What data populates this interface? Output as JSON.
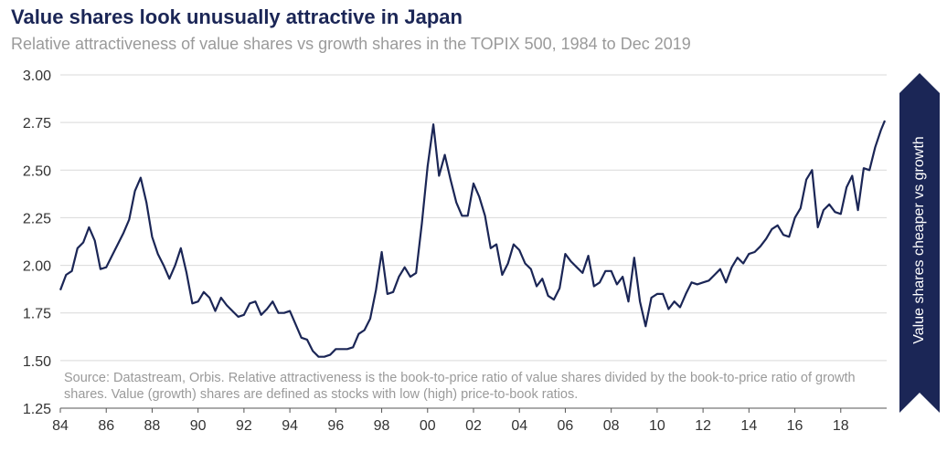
{
  "title": "Value shares look unusually attractive in Japan",
  "subtitle": "Relative attractiveness  of value shares vs growth shares in the TOPIX 500, 1984 to Dec 2019",
  "source_note": "Source: Datastream, Orbis. Relative attractiveness is the book-to-price ratio of value shares divided by the book-to-price ratio of growth shares. Value (growth) shares are defined as stocks with low (high) price-to-book ratios.",
  "side_label": "Value shares cheaper vs growth",
  "colors": {
    "line": "#1b2656",
    "grid": "#d9d9d9",
    "arrow": "#1b2656",
    "text": "#1b2656",
    "muted": "#9a9a9a"
  },
  "chart_data": {
    "type": "line",
    "title": "Value shares look unusually attractive in Japan",
    "subtitle": "Relative attractiveness  of value shares vs growth shares in the TOPIX 500, 1984 to Dec 2019",
    "xlabel": "",
    "ylabel": "",
    "xlim": [
      1984,
      2020
    ],
    "ylim": [
      1.25,
      3.0
    ],
    "y_ticks": [
      "3.00",
      "2.75",
      "2.50",
      "2.25",
      "2.00",
      "1.75",
      "1.50",
      "1.25"
    ],
    "x_ticks": [
      "84",
      "86",
      "88",
      "90",
      "92",
      "94",
      "96",
      "98",
      "00",
      "02",
      "04",
      "06",
      "08",
      "10",
      "12",
      "14",
      "16",
      "18"
    ],
    "grid": "horizontal",
    "series": [
      {
        "x": [
          1984.0,
          1984.25,
          1984.5,
          1984.75,
          1985.0,
          1985.25,
          1985.5,
          1985.75,
          1986.0,
          1986.25,
          1986.5,
          1986.75,
          1987.0,
          1987.25,
          1987.5,
          1987.75,
          1988.0,
          1988.25,
          1988.5,
          1988.75,
          1989.0,
          1989.25,
          1989.5,
          1989.75,
          1990.0,
          1990.25,
          1990.5,
          1990.75,
          1991.0,
          1991.25,
          1991.5,
          1991.75,
          1992.0,
          1992.25,
          1992.5,
          1992.75,
          1993.0,
          1993.25,
          1993.5,
          1993.75,
          1994.0,
          1994.25,
          1994.5,
          1994.75,
          1995.0,
          1995.25,
          1995.5,
          1995.75,
          1996.0,
          1996.25,
          1996.5,
          1996.75,
          1997.0,
          1997.25,
          1997.5,
          1997.75,
          1998.0,
          1998.25,
          1998.5,
          1998.75,
          1999.0,
          1999.25,
          1999.5,
          1999.75,
          2000.0,
          2000.25,
          2000.5,
          2000.75,
          2001.0,
          2001.25,
          2001.5,
          2001.75,
          2002.0,
          2002.25,
          2002.5,
          2002.75,
          2003.0,
          2003.25,
          2003.5,
          2003.75,
          2004.0,
          2004.25,
          2004.5,
          2004.75,
          2005.0,
          2005.25,
          2005.5,
          2005.75,
          2006.0,
          2006.25,
          2006.5,
          2006.75,
          2007.0,
          2007.25,
          2007.5,
          2007.75,
          2008.0,
          2008.25,
          2008.5,
          2008.75,
          2009.0,
          2009.25,
          2009.5,
          2009.75,
          2010.0,
          2010.25,
          2010.5,
          2010.75,
          2011.0,
          2011.25,
          2011.5,
          2011.75,
          2012.0,
          2012.25,
          2012.5,
          2012.75,
          2013.0,
          2013.25,
          2013.5,
          2013.75,
          2014.0,
          2014.25,
          2014.5,
          2014.75,
          2015.0,
          2015.25,
          2015.5,
          2015.75,
          2016.0,
          2016.25,
          2016.5,
          2016.75,
          2017.0,
          2017.25,
          2017.5,
          2017.75,
          2018.0,
          2018.25,
          2018.5,
          2018.75,
          2019.0,
          2019.25,
          2019.5,
          2019.75,
          2019.92
        ],
        "y": [
          1.87,
          1.95,
          1.97,
          2.09,
          2.12,
          2.2,
          2.13,
          1.98,
          1.99,
          2.05,
          2.11,
          2.17,
          2.24,
          2.39,
          2.46,
          2.33,
          2.15,
          2.06,
          2.0,
          1.93,
          2.0,
          2.09,
          1.96,
          1.8,
          1.81,
          1.86,
          1.83,
          1.76,
          1.83,
          1.79,
          1.76,
          1.73,
          1.74,
          1.8,
          1.81,
          1.74,
          1.77,
          1.81,
          1.75,
          1.75,
          1.76,
          1.69,
          1.62,
          1.61,
          1.55,
          1.52,
          1.52,
          1.53,
          1.56,
          1.56,
          1.56,
          1.57,
          1.64,
          1.66,
          1.72,
          1.87,
          2.07,
          1.85,
          1.86,
          1.94,
          1.99,
          1.94,
          1.96,
          2.22,
          2.52,
          2.74,
          2.47,
          2.58,
          2.45,
          2.33,
          2.26,
          2.26,
          2.43,
          2.36,
          2.26,
          2.09,
          2.11,
          1.95,
          2.01,
          2.11,
          2.08,
          2.01,
          1.98,
          1.89,
          1.93,
          1.84,
          1.82,
          1.88,
          2.06,
          2.02,
          1.99,
          1.96,
          2.05,
          1.89,
          1.91,
          1.97,
          1.97,
          1.9,
          1.94,
          1.81,
          2.04,
          1.81,
          1.68,
          1.83,
          1.85,
          1.85,
          1.77,
          1.81,
          1.78,
          1.85,
          1.91,
          1.9,
          1.91,
          1.92,
          1.95,
          1.98,
          1.91,
          1.99,
          2.04,
          2.01,
          2.06,
          2.07,
          2.1,
          2.14,
          2.19,
          2.21,
          2.16,
          2.15,
          2.25,
          2.3,
          2.45,
          2.5,
          2.2,
          2.29,
          2.32,
          2.28,
          2.27,
          2.41,
          2.47,
          2.29,
          2.51,
          2.5,
          2.62,
          2.71,
          2.76
        ]
      }
    ]
  }
}
